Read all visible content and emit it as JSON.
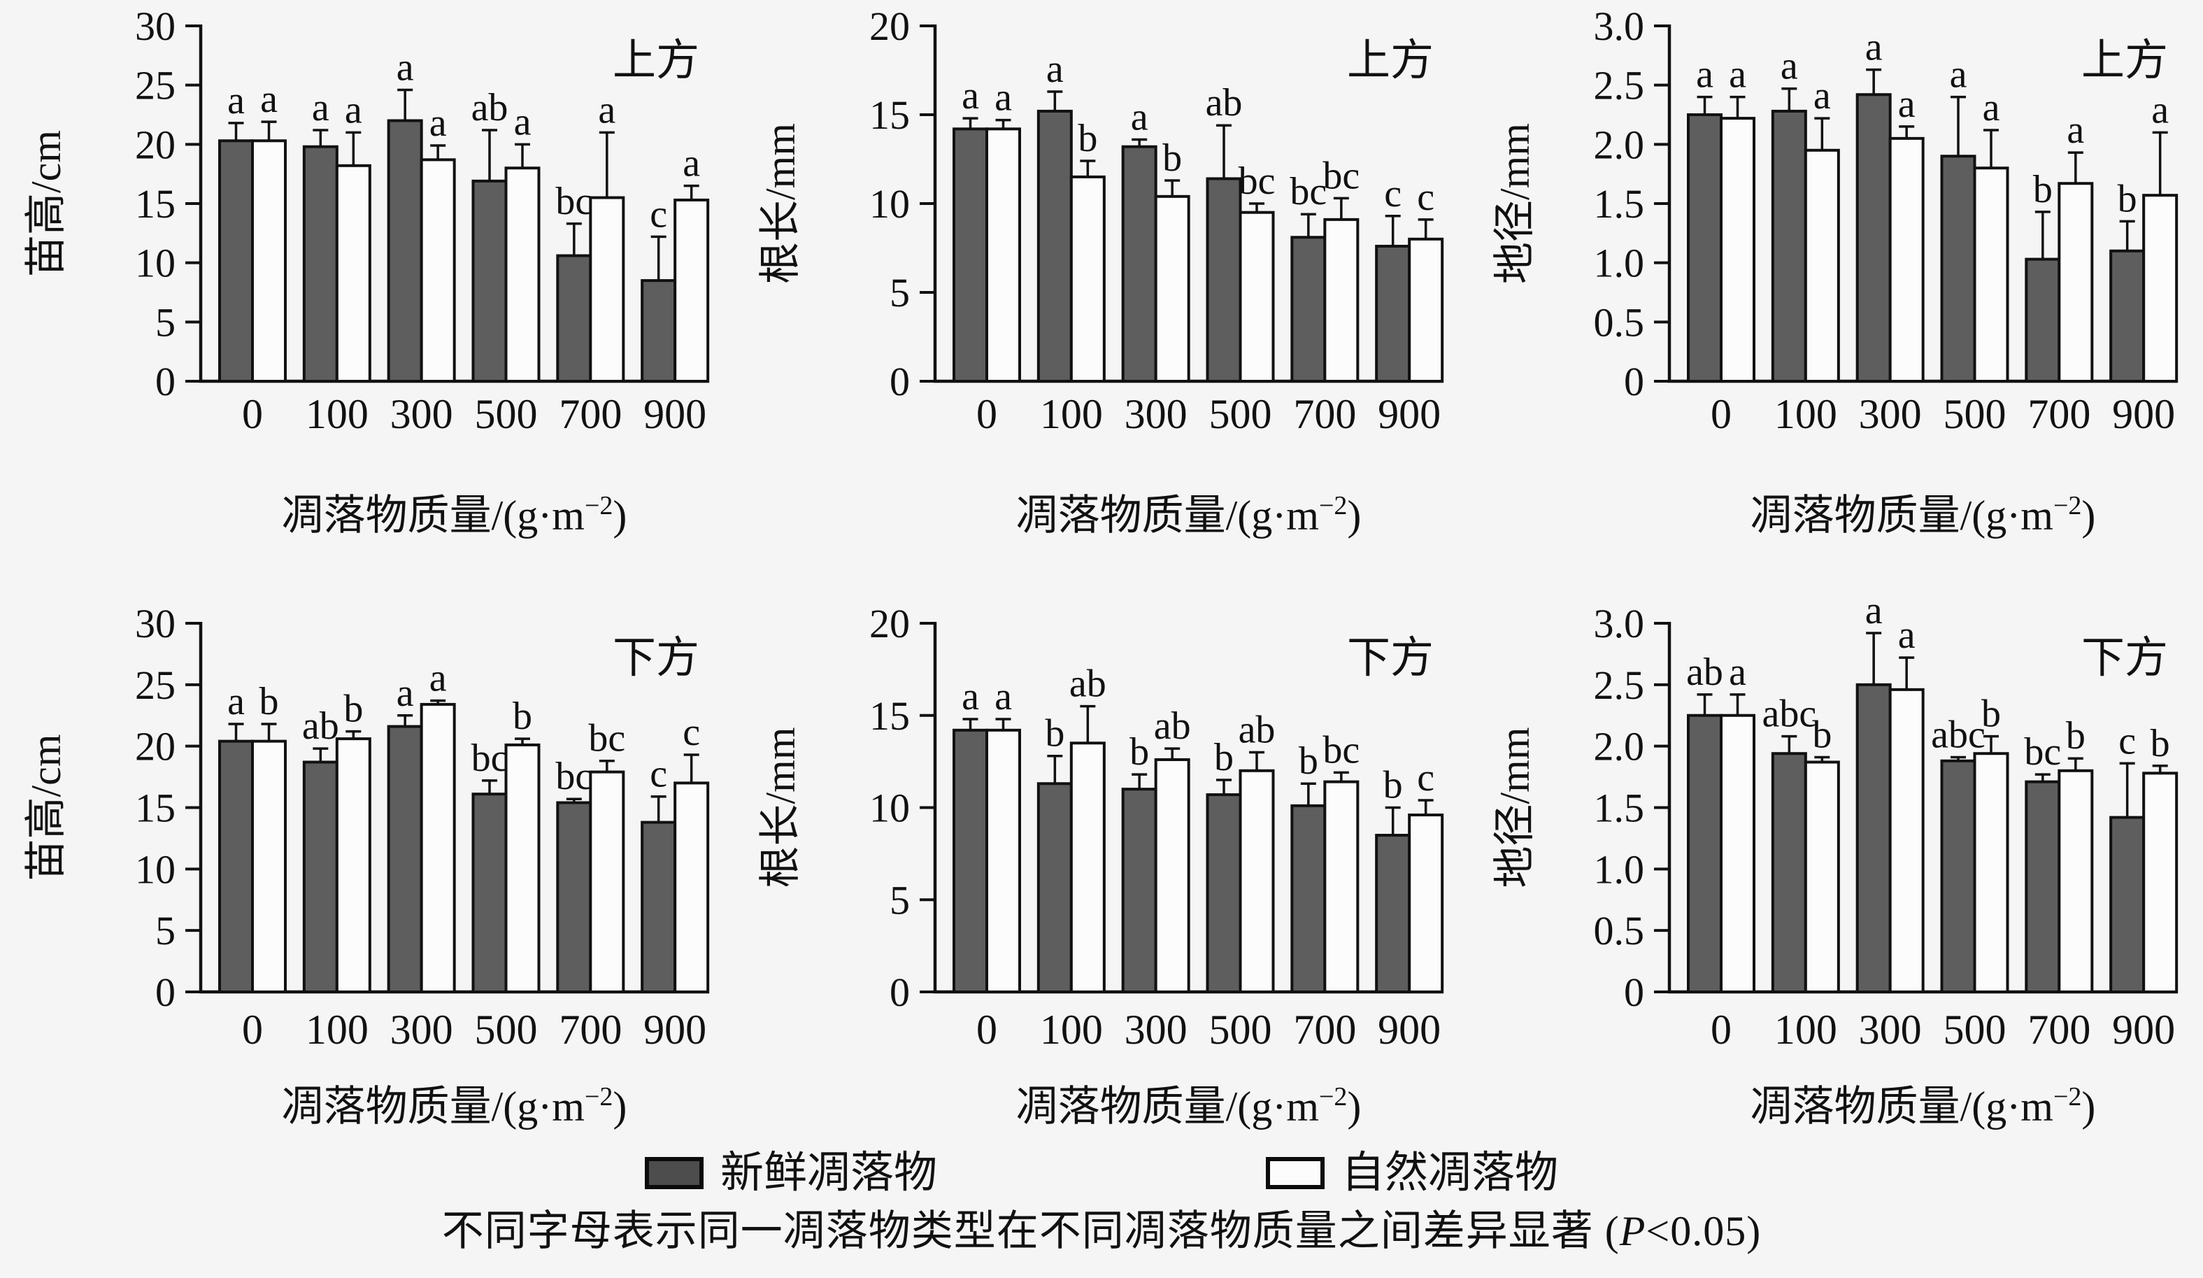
{
  "figure": {
    "background": "#f5f5f5",
    "axis_color": "#111111",
    "bar_stroke": "#111111",
    "letter_color": "#111111"
  },
  "legend": {
    "items": [
      {
        "name": "fresh-litter",
        "label": "新鲜凋落物",
        "fill": "#4d4d4d"
      },
      {
        "name": "natural-litter",
        "label": "自然凋落物",
        "fill": "#fcfcfc"
      }
    ]
  },
  "footnote": {
    "pre": "不同字母表示同一凋落物类型在不同凋落物质量之间差异显著 (",
    "italic": "P",
    "post": "<0.05)"
  },
  "x_axis": {
    "categories": [
      "0",
      "100",
      "300",
      "500",
      "700",
      "900"
    ],
    "label_pre": "凋落物质量/(g·m",
    "label_sup": "−2",
    "label_post": ")"
  },
  "chart_data": [
    {
      "type": "bar",
      "row": "top",
      "panel_label": "上方",
      "ylabel": "苗高/cm",
      "ylim": [
        0,
        30
      ],
      "ytick_values": [
        0,
        5,
        10,
        15,
        20,
        25,
        30
      ],
      "ytick_labels": [
        "0",
        "5",
        "10",
        "15",
        "20",
        "25",
        "30"
      ],
      "categories": [
        "0",
        "100",
        "300",
        "500",
        "700",
        "900"
      ],
      "series": [
        {
          "name": "新鲜凋落物",
          "values": [
            20.3,
            19.8,
            22.0,
            16.9,
            10.6,
            8.5
          ],
          "errors": [
            1.5,
            1.4,
            2.6,
            4.3,
            2.7,
            3.7
          ],
          "letters": [
            "a",
            "a",
            "a",
            "ab",
            "bc",
            "c"
          ]
        },
        {
          "name": "自然凋落物",
          "values": [
            20.3,
            18.2,
            18.7,
            18.0,
            15.5,
            15.3
          ],
          "errors": [
            1.6,
            2.8,
            1.2,
            2.0,
            5.5,
            1.2
          ],
          "letters": [
            "a",
            "a",
            "a",
            "a",
            "a",
            "a"
          ]
        }
      ]
    },
    {
      "type": "bar",
      "row": "top",
      "panel_label": "上方",
      "ylabel": "根长/mm",
      "ylim": [
        0,
        20
      ],
      "ytick_values": [
        0,
        5,
        10,
        15,
        20
      ],
      "ytick_labels": [
        "0",
        "5",
        "10",
        "15",
        "20"
      ],
      "categories": [
        "0",
        "100",
        "300",
        "500",
        "700",
        "900"
      ],
      "series": [
        {
          "name": "新鲜凋落物",
          "values": [
            14.2,
            15.2,
            13.2,
            11.4,
            8.1,
            7.6
          ],
          "errors": [
            0.6,
            1.1,
            0.4,
            3.0,
            1.3,
            1.7
          ],
          "letters": [
            "a",
            "a",
            "a",
            "ab",
            "bc",
            "c"
          ]
        },
        {
          "name": "自然凋落物",
          "values": [
            14.2,
            11.5,
            10.4,
            9.5,
            9.1,
            8.0
          ],
          "errors": [
            0.5,
            0.9,
            0.9,
            0.5,
            1.2,
            1.1
          ],
          "letters": [
            "a",
            "b",
            "b",
            "bc",
            "bc",
            "c"
          ]
        }
      ]
    },
    {
      "type": "bar",
      "row": "top",
      "panel_label": "上方",
      "ylabel": "地径/mm",
      "ylim": [
        0,
        3
      ],
      "ytick_values": [
        0,
        0.5,
        1.0,
        1.5,
        2.0,
        2.5,
        3.0
      ],
      "ytick_labels": [
        "0",
        "0.5",
        "1.0",
        "1.5",
        "2.0",
        "2.5",
        "3.0"
      ],
      "categories": [
        "0",
        "100",
        "300",
        "500",
        "700",
        "900"
      ],
      "series": [
        {
          "name": "新鲜凋落物",
          "values": [
            2.25,
            2.28,
            2.42,
            1.9,
            1.03,
            1.1
          ],
          "errors": [
            0.15,
            0.19,
            0.21,
            0.5,
            0.4,
            0.25
          ],
          "letters": [
            "a",
            "a",
            "a",
            "a",
            "b",
            "b"
          ]
        },
        {
          "name": "自然凋落物",
          "values": [
            2.22,
            1.95,
            2.05,
            1.8,
            1.67,
            1.57
          ],
          "errors": [
            0.18,
            0.27,
            0.1,
            0.32,
            0.26,
            0.53
          ],
          "letters": [
            "a",
            "a",
            "a",
            "a",
            "a",
            "a"
          ]
        }
      ]
    },
    {
      "type": "bar",
      "row": "bottom",
      "panel_label": "下方",
      "ylabel": "苗高/cm",
      "ylim": [
        0,
        30
      ],
      "ytick_values": [
        0,
        5,
        10,
        15,
        20,
        25,
        30
      ],
      "ytick_labels": [
        "0",
        "5",
        "10",
        "15",
        "20",
        "25",
        "30"
      ],
      "categories": [
        "0",
        "100",
        "300",
        "500",
        "700",
        "900"
      ],
      "series": [
        {
          "name": "新鲜凋落物",
          "values": [
            20.4,
            18.7,
            21.6,
            16.1,
            15.4,
            13.8
          ],
          "errors": [
            1.4,
            1.1,
            0.9,
            1.1,
            0.3,
            2.1
          ],
          "letters": [
            "a",
            "ab",
            "a",
            "bc",
            "bc",
            "c"
          ]
        },
        {
          "name": "自然凋落物",
          "values": [
            20.4,
            20.6,
            23.4,
            20.1,
            17.9,
            17.0
          ],
          "errors": [
            1.4,
            0.6,
            0.3,
            0.5,
            0.9,
            2.3
          ],
          "letters": [
            "b",
            "b",
            "a",
            "b",
            "bc",
            "c"
          ]
        }
      ]
    },
    {
      "type": "bar",
      "row": "bottom",
      "panel_label": "下方",
      "ylabel": "根长/mm",
      "ylim": [
        0,
        20
      ],
      "ytick_values": [
        0,
        5,
        10,
        15,
        20
      ],
      "ytick_labels": [
        "0",
        "5",
        "10",
        "15",
        "20"
      ],
      "categories": [
        "0",
        "100",
        "300",
        "500",
        "700",
        "900"
      ],
      "series": [
        {
          "name": "新鲜凋落物",
          "values": [
            14.2,
            11.3,
            11.0,
            10.7,
            10.1,
            8.5
          ],
          "errors": [
            0.6,
            1.5,
            0.8,
            0.8,
            1.2,
            1.5
          ],
          "letters": [
            "a",
            "b",
            "b",
            "b",
            "b",
            "b"
          ]
        },
        {
          "name": "自然凋落物",
          "values": [
            14.2,
            13.5,
            12.6,
            12.0,
            11.4,
            9.6
          ],
          "errors": [
            0.6,
            2.0,
            0.6,
            1.0,
            0.5,
            0.8
          ],
          "letters": [
            "a",
            "ab",
            "ab",
            "ab",
            "bc",
            "c"
          ]
        }
      ]
    },
    {
      "type": "bar",
      "row": "bottom",
      "panel_label": "下方",
      "ylabel": "地径/mm",
      "ylim": [
        0,
        3
      ],
      "ytick_values": [
        0,
        0.5,
        1.0,
        1.5,
        2.0,
        2.5,
        3.0
      ],
      "ytick_labels": [
        "0",
        "0.5",
        "1.0",
        "1.5",
        "2.0",
        "2.5",
        "3.0"
      ],
      "categories": [
        "0",
        "100",
        "300",
        "500",
        "700",
        "900"
      ],
      "series": [
        {
          "name": "新鲜凋落物",
          "values": [
            2.25,
            1.94,
            2.5,
            1.88,
            1.71,
            1.42
          ],
          "errors": [
            0.17,
            0.14,
            0.42,
            0.03,
            0.06,
            0.44
          ],
          "letters": [
            "ab",
            "abc",
            "a",
            "abc",
            "bc",
            "c"
          ]
        },
        {
          "name": "自然凋落物",
          "values": [
            2.25,
            1.87,
            2.46,
            1.94,
            1.8,
            1.78
          ],
          "errors": [
            0.17,
            0.04,
            0.26,
            0.14,
            0.1,
            0.06
          ],
          "letters": [
            "a",
            "b",
            "a",
            "b",
            "b",
            "b"
          ]
        }
      ]
    }
  ]
}
